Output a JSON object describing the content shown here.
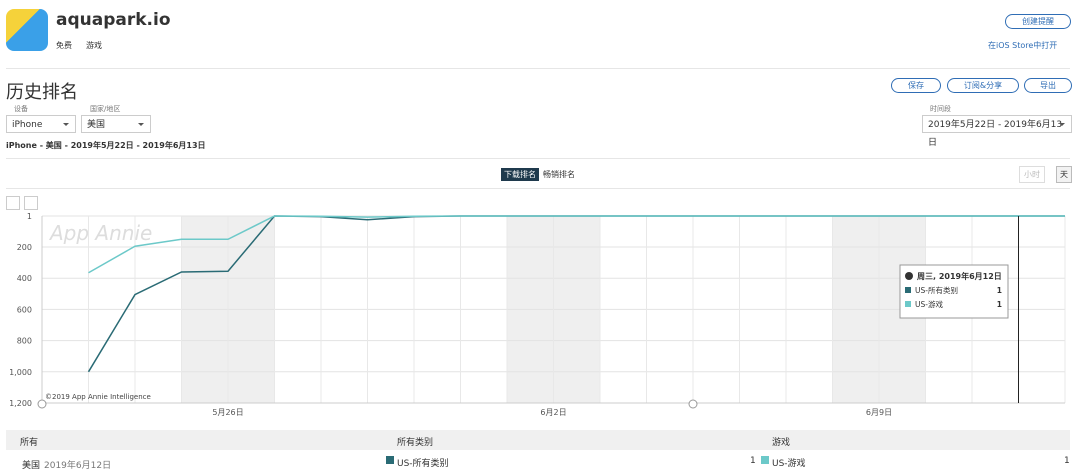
{
  "header": {
    "app_name": "aquapark.io",
    "price": "免费",
    "genre": "游戏",
    "alert_button": "创建提醒",
    "store_link": "在iOS Store中打开"
  },
  "page_title": "历史排名",
  "actions": [
    "保存",
    "订阅&分享",
    "导出"
  ],
  "controls": {
    "device_label": "设备",
    "device": "iPhone",
    "country_label": "国家/地区",
    "country": "美国",
    "period_label": "时间段",
    "period": "2019年5月22日 - 2019年6月13日",
    "summary": "iPhone - 美国 - 2019年5月22日 - 2019年6月13日"
  },
  "tabs": [
    "下载排名",
    "畅销排名"
  ],
  "granularity": [
    "小时",
    "天"
  ],
  "chart_data": {
    "type": "line",
    "watermark": "App Annie",
    "credit": "©2019 App Annie Intelligence",
    "categories": [
      null,
      null,
      null,
      null,
      "5月26日",
      null,
      null,
      null,
      null,
      null,
      null,
      "6月2日",
      null,
      null,
      null,
      null,
      null,
      null,
      "6月9日",
      null,
      null,
      null,
      null
    ],
    "series": [
      {
        "name": "US-所有类别",
        "color": "#2a6b75",
        "values": [
          null,
          1000,
          505,
          360,
          355,
          1,
          5,
          25,
          5,
          1,
          1,
          1,
          1,
          1,
          1,
          1,
          1,
          1,
          1,
          1,
          1,
          1,
          1
        ]
      },
      {
        "name": "US-游戏",
        "color": "#6cc9c9",
        "values": [
          null,
          365,
          195,
          150,
          150,
          1,
          3,
          8,
          3,
          1,
          1,
          1,
          1,
          1,
          1,
          1,
          1,
          1,
          1,
          1,
          1,
          1,
          1
        ]
      }
    ],
    "ylim": [
      1,
      1200
    ],
    "invert_y": true,
    "yticks": [
      1,
      200,
      400,
      600,
      800,
      {
        "value": 1000,
        "label": "1,000"
      },
      {
        "value": 1200,
        "label": "1,200"
      }
    ],
    "grid": true,
    "tooltip": {
      "title": "周三, 2019年6月12日",
      "values": [
        1,
        1
      ]
    }
  },
  "table": {
    "headers": [
      "所有",
      "所有类别",
      "游戏"
    ],
    "country": "美国",
    "date": "2019年6月12日",
    "values": [
      1,
      1
    ]
  }
}
